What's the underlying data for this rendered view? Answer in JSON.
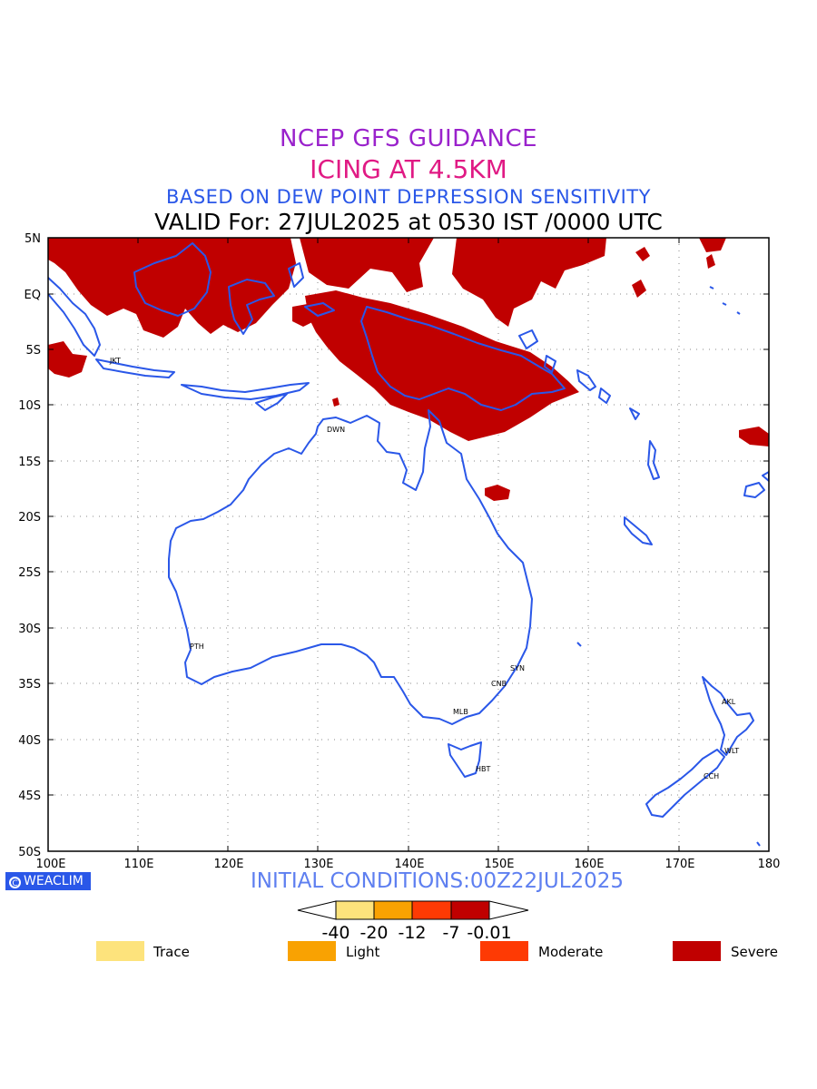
{
  "titles": {
    "line1": "NCEP GFS GUIDANCE",
    "line2": "ICING AT 4.5KM",
    "line3": "BASED ON DEW POINT DEPRESSION SENSITIVITY",
    "line4": "VALID For: 27JUL2025 at 0530 IST /0000 UTC"
  },
  "axes": {
    "lat_labels": [
      "5N",
      "EQ",
      "5S",
      "10S",
      "15S",
      "20S",
      "25S",
      "30S",
      "35S",
      "40S",
      "45S",
      "50S"
    ],
    "lon_labels": [
      "100E",
      "110E",
      "120E",
      "130E",
      "140E",
      "150E",
      "160E",
      "170E",
      "180"
    ]
  },
  "stations": [
    "JKT",
    "DWN",
    "PTH",
    "SYN",
    "CNB",
    "MLB",
    "HBT",
    "AKL",
    "WLT",
    "CCH"
  ],
  "logo": {
    "text": "WEACLIM",
    "symbol": "C"
  },
  "initial_conditions": "INITIAL CONDITIONS:00Z22JUL2025",
  "colorbar": {
    "ticks": [
      "-40",
      "-20",
      "-12",
      "-7",
      "-0.01"
    ],
    "colors": [
      "#fde37c",
      "#f9a202",
      "#fe3a04",
      "#c00000"
    ]
  },
  "legend": [
    {
      "label": "Trace",
      "color": "#fde37c"
    },
    {
      "label": "Light",
      "color": "#f9a202"
    },
    {
      "label": "Moderate",
      "color": "#fe3a04"
    },
    {
      "label": "Severe",
      "color": "#c00000"
    }
  ],
  "colors": {
    "coastline": "#2a57e8",
    "severe": "#c00000"
  }
}
